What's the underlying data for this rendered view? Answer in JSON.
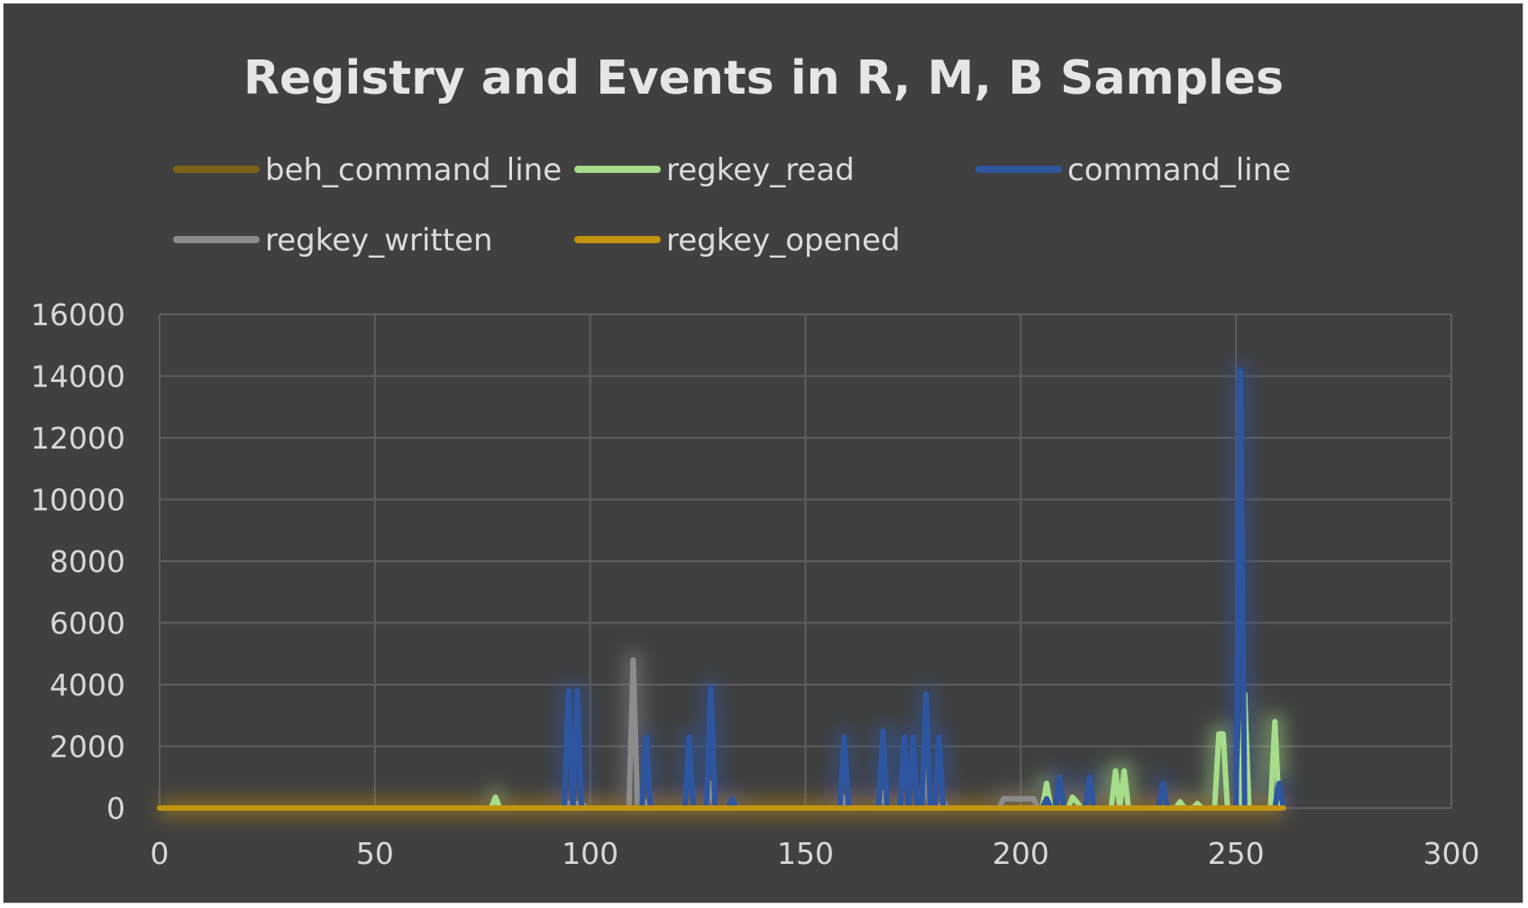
{
  "chart_data": {
    "type": "line",
    "title": "Registry and Events in R, M, B Samples",
    "xlabel": "",
    "ylabel": "",
    "xlim": [
      0,
      300
    ],
    "ylim": [
      0,
      16000
    ],
    "x_ticks": [
      0,
      50,
      100,
      150,
      200,
      250,
      300
    ],
    "y_ticks": [
      0,
      2000,
      4000,
      6000,
      8000,
      10000,
      12000,
      14000,
      16000
    ],
    "grid": true,
    "legend_position": "top",
    "series": [
      {
        "name": "beh_command_line",
        "color": "#7d6214",
        "points": [
          [
            0,
            0
          ],
          [
            261,
            0
          ]
        ]
      },
      {
        "name": "regkey_read",
        "color": "#a6dc8a",
        "points": [
          [
            0,
            0
          ],
          [
            77,
            0
          ],
          [
            78,
            350
          ],
          [
            79,
            0
          ],
          [
            205,
            0
          ],
          [
            206,
            800
          ],
          [
            207,
            0
          ],
          [
            211,
            0
          ],
          [
            212,
            350
          ],
          [
            213,
            200
          ],
          [
            214,
            0
          ],
          [
            221,
            0
          ],
          [
            222,
            1200
          ],
          [
            223,
            0
          ],
          [
            224,
            1200
          ],
          [
            225,
            0
          ],
          [
            236,
            0
          ],
          [
            237,
            200
          ],
          [
            238,
            0
          ],
          [
            240,
            0
          ],
          [
            241,
            150
          ],
          [
            242,
            0
          ],
          [
            245,
            0
          ],
          [
            246,
            2400
          ],
          [
            247,
            2400
          ],
          [
            248,
            0
          ],
          [
            251,
            0
          ],
          [
            252,
            3700
          ],
          [
            253,
            0
          ],
          [
            258,
            0
          ],
          [
            259,
            2800
          ],
          [
            260,
            0
          ],
          [
            261,
            0
          ]
        ]
      },
      {
        "name": "command_line",
        "color": "#2e55a0",
        "points": [
          [
            0,
            0
          ],
          [
            94,
            0
          ],
          [
            95,
            3800
          ],
          [
            96,
            0
          ],
          [
            97,
            3800
          ],
          [
            98,
            0
          ],
          [
            112,
            0
          ],
          [
            113,
            2300
          ],
          [
            114,
            0
          ],
          [
            122,
            0
          ],
          [
            123,
            2300
          ],
          [
            124,
            0
          ],
          [
            127,
            0
          ],
          [
            128,
            3900
          ],
          [
            129,
            0
          ],
          [
            132,
            0
          ],
          [
            133,
            300
          ],
          [
            134,
            0
          ],
          [
            158,
            0
          ],
          [
            159,
            2300
          ],
          [
            160,
            0
          ],
          [
            167,
            0
          ],
          [
            168,
            2500
          ],
          [
            169,
            0
          ],
          [
            172,
            0
          ],
          [
            173,
            2300
          ],
          [
            174,
            0
          ],
          [
            175,
            2300
          ],
          [
            176,
            0
          ],
          [
            177,
            0
          ],
          [
            178,
            3700
          ],
          [
            179,
            0
          ],
          [
            180,
            0
          ],
          [
            181,
            2300
          ],
          [
            182,
            0
          ],
          [
            205,
            0
          ],
          [
            206,
            300
          ],
          [
            207,
            0
          ],
          [
            208,
            0
          ],
          [
            209,
            1000
          ],
          [
            210,
            0
          ],
          [
            215,
            0
          ],
          [
            216,
            1000
          ],
          [
            217,
            0
          ],
          [
            232,
            0
          ],
          [
            233,
            800
          ],
          [
            234,
            0
          ],
          [
            250,
            0
          ],
          [
            251,
            14200
          ],
          [
            252,
            0
          ],
          [
            259,
            0
          ],
          [
            260,
            800
          ],
          [
            261,
            0
          ]
        ]
      },
      {
        "name": "regkey_written",
        "color": "#8c8c8c",
        "points": [
          [
            0,
            0
          ],
          [
            94,
            0
          ],
          [
            95,
            150
          ],
          [
            98,
            150
          ],
          [
            99,
            0
          ],
          [
            109,
            0
          ],
          [
            110,
            4800
          ],
          [
            111,
            0
          ],
          [
            112,
            0
          ],
          [
            113,
            200
          ],
          [
            114,
            0
          ],
          [
            127,
            0
          ],
          [
            128,
            800
          ],
          [
            129,
            0
          ],
          [
            158,
            0
          ],
          [
            159,
            350
          ],
          [
            160,
            0
          ],
          [
            167,
            0
          ],
          [
            168,
            500
          ],
          [
            169,
            0
          ],
          [
            177,
            0
          ],
          [
            178,
            1200
          ],
          [
            179,
            0
          ],
          [
            181,
            0
          ],
          [
            182,
            200
          ],
          [
            183,
            0
          ],
          [
            195,
            0
          ],
          [
            196,
            300
          ],
          [
            203,
            300
          ],
          [
            204,
            0
          ],
          [
            261,
            0
          ]
        ]
      },
      {
        "name": "regkey_opened",
        "color": "#c29410",
        "points": [
          [
            0,
            0
          ],
          [
            261,
            0
          ]
        ]
      }
    ]
  }
}
